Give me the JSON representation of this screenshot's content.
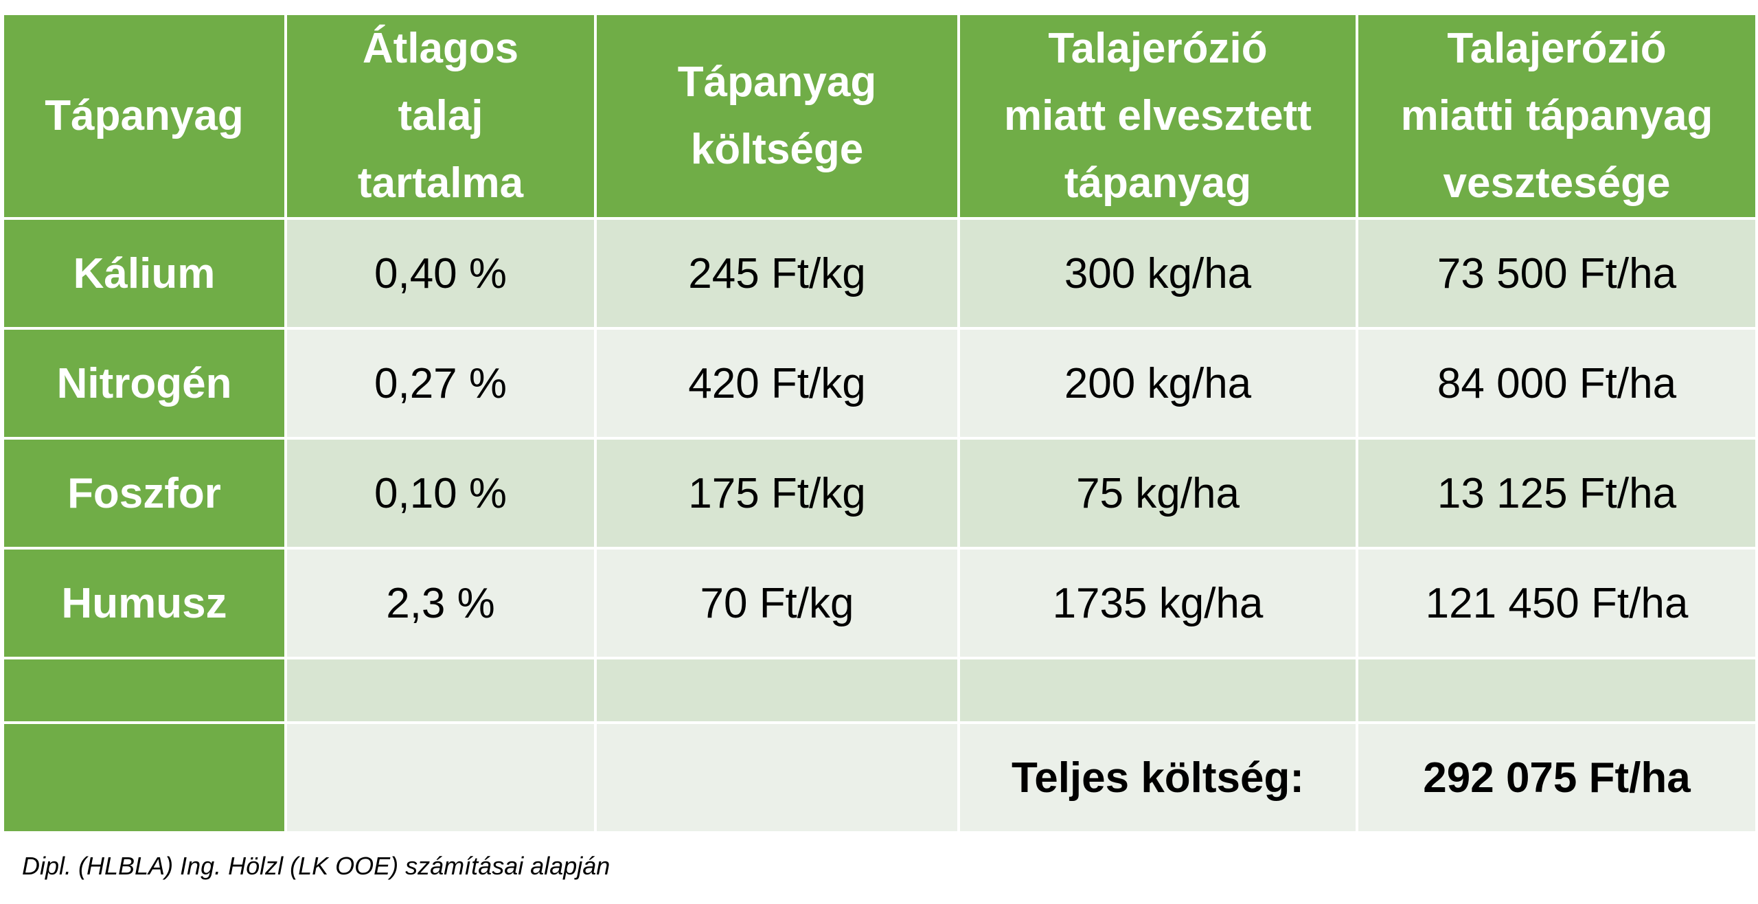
{
  "table": {
    "header": [
      [
        "Tápanyag"
      ],
      [
        "Átlagos",
        "talaj",
        "tartalma"
      ],
      [
        "Tápanyag",
        "költsége"
      ],
      [
        "Talajerózió",
        "miatt elvesztett",
        "tápanyag"
      ],
      [
        "Talajerózió",
        "miatti tápanyag",
        "vesztesége"
      ]
    ],
    "rows": [
      [
        "Kálium",
        "0,40 %",
        "245 Ft/kg",
        "300 kg/ha",
        "73 500 Ft/ha"
      ],
      [
        "Nitrogén",
        "0,27 %",
        "420 Ft/kg",
        "200 kg/ha",
        "84 000 Ft/ha"
      ],
      [
        "Foszfor",
        "0,10 %",
        "175 Ft/kg",
        "75 kg/ha",
        "13 125 Ft/ha"
      ],
      [
        "Humusz",
        "2,3 %",
        "70 Ft/kg",
        "1735 kg/ha",
        "121 450 Ft/ha"
      ]
    ],
    "total": {
      "label": "Teljes költség:",
      "value": "292 075 Ft/ha"
    }
  },
  "footnote": "Dipl. (HLBLA) Ing. Hölzl (LK OOE) számításai alapján"
}
